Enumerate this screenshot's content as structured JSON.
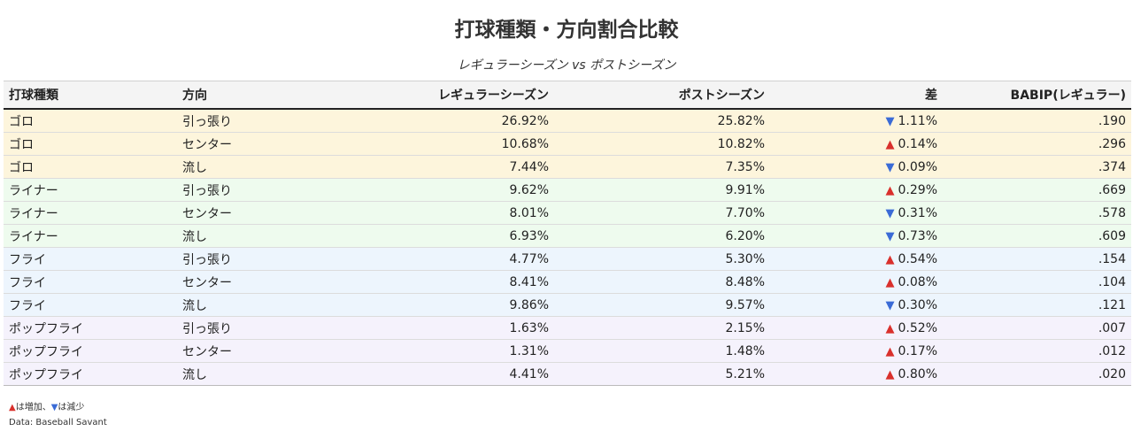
{
  "title": "打球種類・方向割合比較",
  "subtitle": "レギュラーシーズン vs ポストシーズン",
  "columns": {
    "type": "打球種類",
    "direction": "方向",
    "regular": "レギュラーシーズン",
    "post": "ポストシーズン",
    "diff": "差",
    "babip": "BABIP(レギュラー)"
  },
  "colors": {
    "up": "#d9302c",
    "down": "#3a6bd6"
  },
  "rows": [
    {
      "type": "ゴロ",
      "direction": "引っ張り",
      "regular": "26.92%",
      "post": "25.82%",
      "trend": "down",
      "arrow": "▼",
      "diff": "1.11%",
      "babip": ".190"
    },
    {
      "type": "ゴロ",
      "direction": "センター",
      "regular": "10.68%",
      "post": "10.82%",
      "trend": "up",
      "arrow": "▲",
      "diff": "0.14%",
      "babip": ".296"
    },
    {
      "type": "ゴロ",
      "direction": "流し",
      "regular": "7.44%",
      "post": "7.35%",
      "trend": "down",
      "arrow": "▼",
      "diff": "0.09%",
      "babip": ".374"
    },
    {
      "type": "ライナー",
      "direction": "引っ張り",
      "regular": "9.62%",
      "post": "9.91%",
      "trend": "up",
      "arrow": "▲",
      "diff": "0.29%",
      "babip": ".669"
    },
    {
      "type": "ライナー",
      "direction": "センター",
      "regular": "8.01%",
      "post": "7.70%",
      "trend": "down",
      "arrow": "▼",
      "diff": "0.31%",
      "babip": ".578"
    },
    {
      "type": "ライナー",
      "direction": "流し",
      "regular": "6.93%",
      "post": "6.20%",
      "trend": "down",
      "arrow": "▼",
      "diff": "0.73%",
      "babip": ".609"
    },
    {
      "type": "フライ",
      "direction": "引っ張り",
      "regular": "4.77%",
      "post": "5.30%",
      "trend": "up",
      "arrow": "▲",
      "diff": "0.54%",
      "babip": ".154"
    },
    {
      "type": "フライ",
      "direction": "センター",
      "regular": "8.41%",
      "post": "8.48%",
      "trend": "up",
      "arrow": "▲",
      "diff": "0.08%",
      "babip": ".104"
    },
    {
      "type": "フライ",
      "direction": "流し",
      "regular": "9.86%",
      "post": "9.57%",
      "trend": "down",
      "arrow": "▼",
      "diff": "0.30%",
      "babip": ".121"
    },
    {
      "type": "ポップフライ",
      "direction": "引っ張り",
      "regular": "1.63%",
      "post": "2.15%",
      "trend": "up",
      "arrow": "▲",
      "diff": "0.52%",
      "babip": ".007"
    },
    {
      "type": "ポップフライ",
      "direction": "センター",
      "regular": "1.31%",
      "post": "1.48%",
      "trend": "up",
      "arrow": "▲",
      "diff": "0.17%",
      "babip": ".012"
    },
    {
      "type": "ポップフライ",
      "direction": "流し",
      "regular": "4.41%",
      "post": "5.21%",
      "trend": "up",
      "arrow": "▲",
      "diff": "0.80%",
      "babip": ".020"
    }
  ],
  "legend": {
    "up_symbol": "▲",
    "up_text": "は増加、",
    "down_symbol": "▼",
    "down_text": "は減少"
  },
  "source": "Data: Baseball Savant"
}
